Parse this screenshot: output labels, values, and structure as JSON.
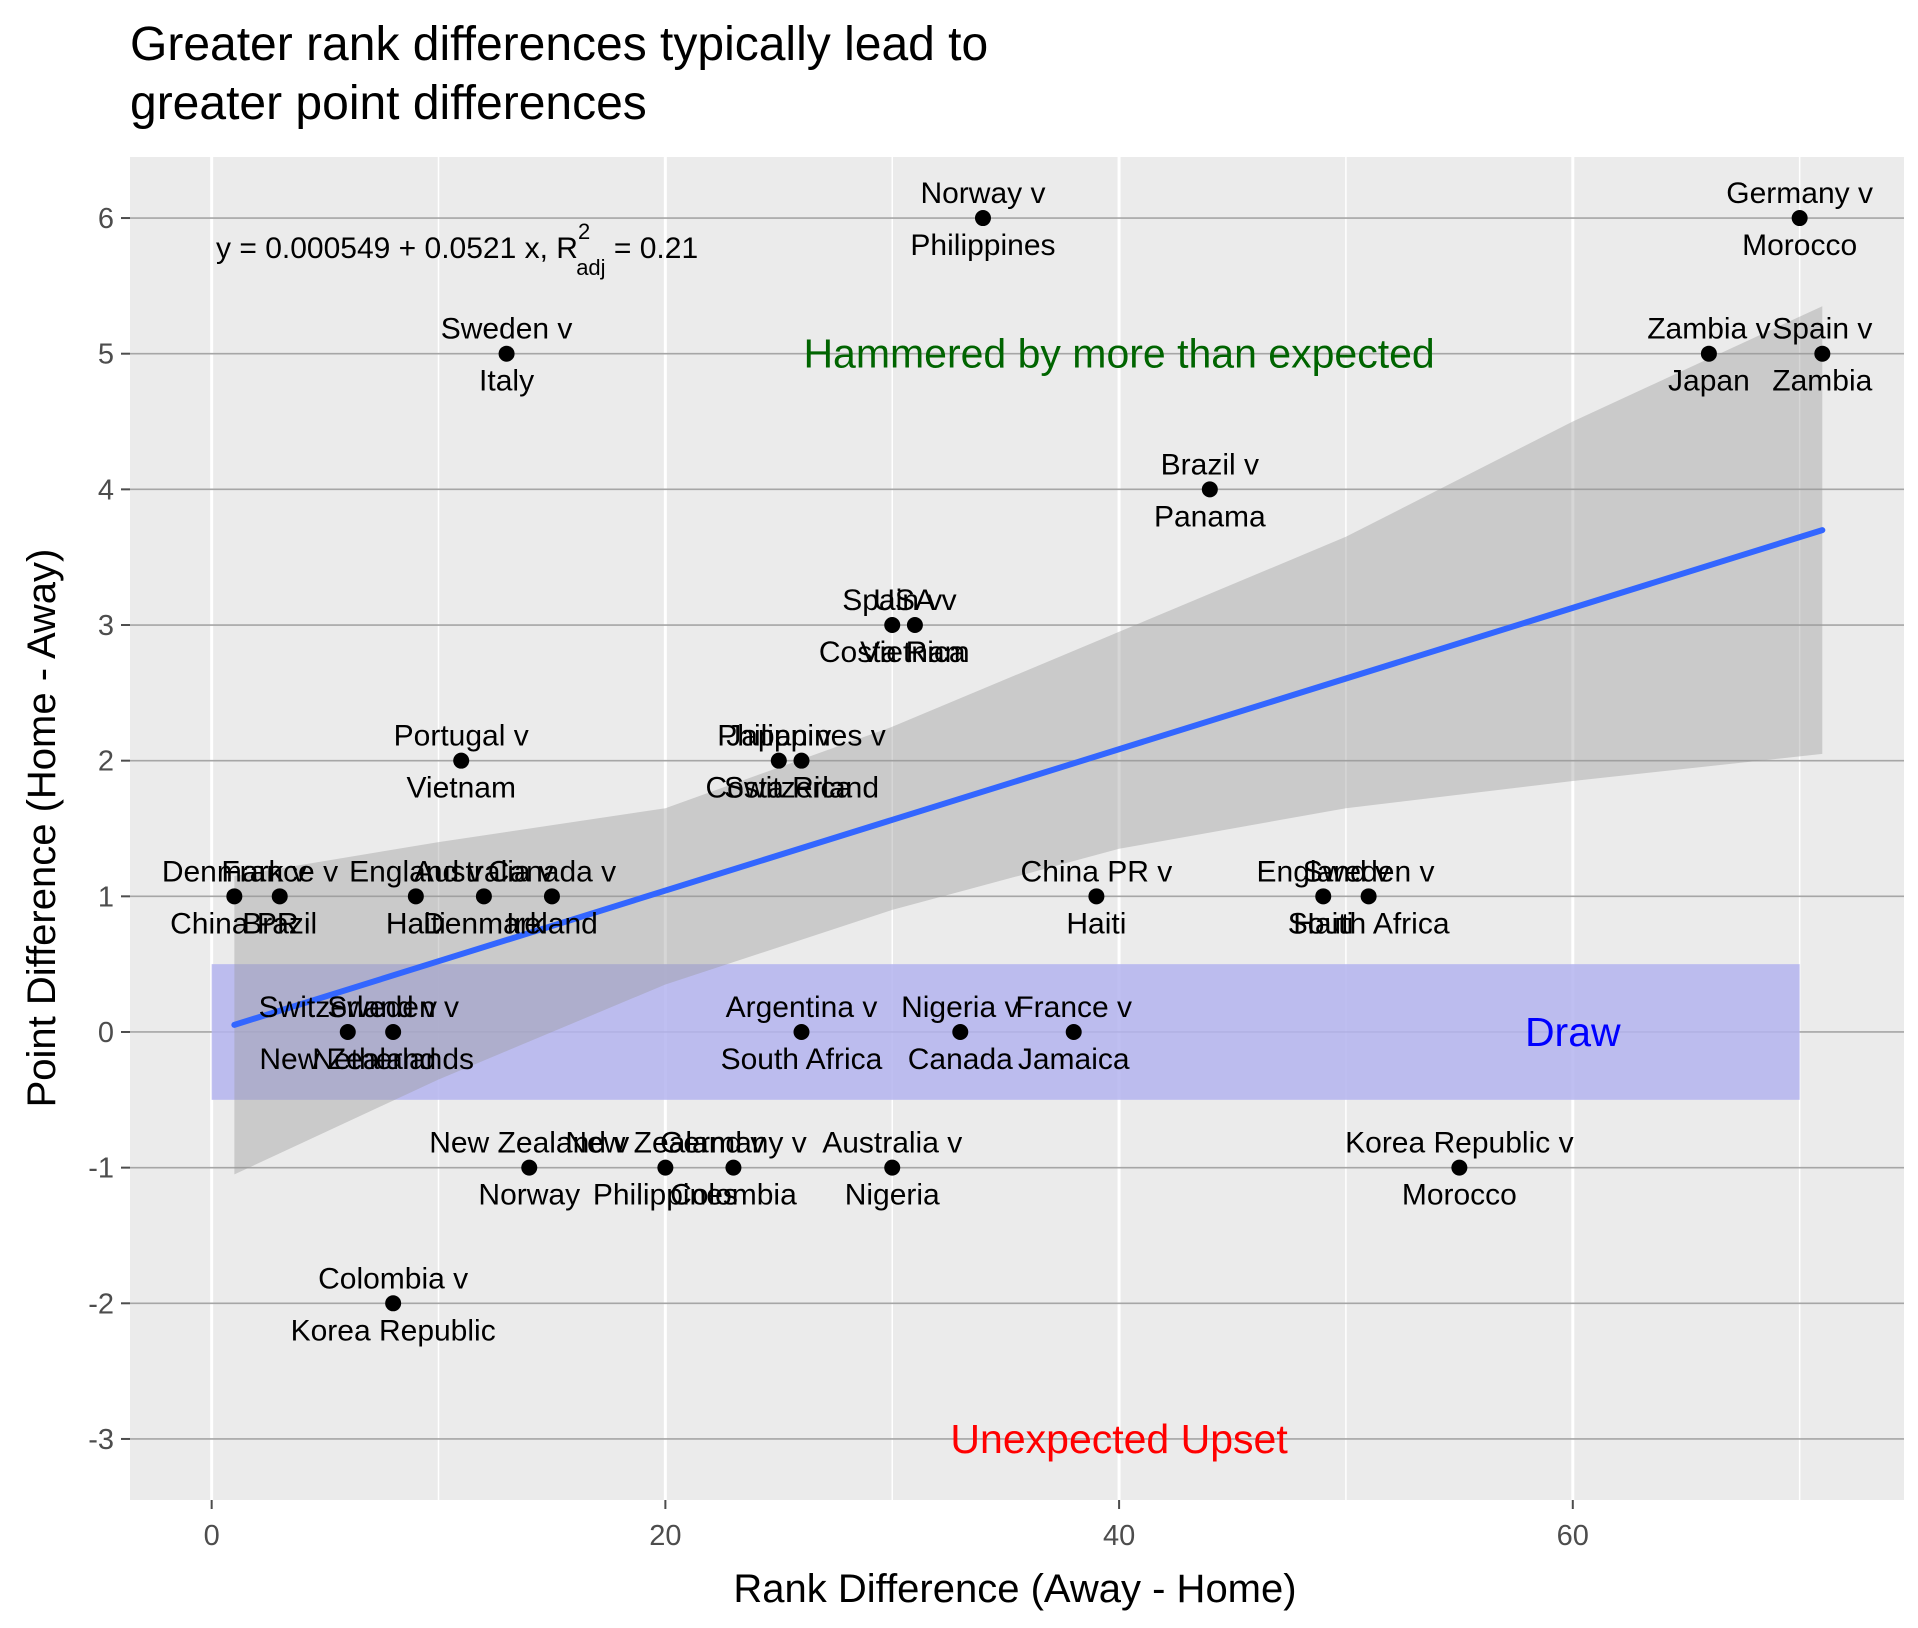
{
  "chart_data": {
    "type": "scatter",
    "title": [
      "Greater rank differences typically lead to",
      "greater point differences"
    ],
    "xlabel": "Rank Difference (Away - Home)",
    "ylabel": "Point Difference (Home - Away)",
    "xlim": [
      -3.6,
      74.6
    ],
    "ylim": [
      -3.45,
      6.45
    ],
    "x_ticks": [
      0,
      20,
      40,
      60
    ],
    "y_ticks": [
      -3,
      -2,
      -1,
      0,
      1,
      2,
      3,
      4,
      5,
      6
    ],
    "grid": true,
    "colors": {
      "panel": "#ebebeb",
      "grid_major": "#a6a6a6",
      "grid_minor": "#ffffff",
      "point": "#000000",
      "fit_line": "#3366ff",
      "ribbon": "#c8c8c8",
      "draw_band": "#b4b4ee",
      "hammered": "#006400",
      "upset": "#ff0000",
      "draw": "#0000ff"
    },
    "points": [
      {
        "x": 1,
        "y": 1,
        "home": "Denmark v",
        "away": "China PR"
      },
      {
        "x": 3,
        "y": 1,
        "home": "France v",
        "away": "Brazil"
      },
      {
        "x": 9,
        "y": 1,
        "home": "England v",
        "away": "Haiti"
      },
      {
        "x": 12,
        "y": 1,
        "home": "Australia v",
        "away": "Denmark"
      },
      {
        "x": 15,
        "y": 1,
        "home": "Canada v",
        "away": "Ireland"
      },
      {
        "x": 6,
        "y": 0,
        "home": "Switzerland v",
        "away": "New Zealand"
      },
      {
        "x": 8,
        "y": 0,
        "home": "Sweden v",
        "away": "Netherlands"
      },
      {
        "x": 11,
        "y": 2,
        "home": "Portugal v",
        "away": "Vietnam"
      },
      {
        "x": 13,
        "y": 5,
        "home": "Sweden v",
        "away": "Italy"
      },
      {
        "x": 8,
        "y": -2,
        "home": "Colombia v",
        "away": "Korea Republic"
      },
      {
        "x": 14,
        "y": -1,
        "home": "New Zealand v",
        "away": "Norway"
      },
      {
        "x": 20,
        "y": -1,
        "home": "New Zealand v",
        "away": "Philippines"
      },
      {
        "x": 23,
        "y": -1,
        "home": "Germany v",
        "away": "Colombia"
      },
      {
        "x": 30,
        "y": -1,
        "home": "Australia v",
        "away": "Nigeria"
      },
      {
        "x": 26,
        "y": 0,
        "home": "Argentina v",
        "away": "South Africa"
      },
      {
        "x": 33,
        "y": 0,
        "home": "Nigeria v",
        "away": "Canada"
      },
      {
        "x": 38,
        "y": 0,
        "home": "France v",
        "away": "Jamaica"
      },
      {
        "x": 25,
        "y": 2,
        "home": "Japan v",
        "away": "Costa Rica"
      },
      {
        "x": 26,
        "y": 2,
        "home": "Philippines v",
        "away": "Switzerland"
      },
      {
        "x": 30,
        "y": 3,
        "home": "Spain v",
        "away": "Costa Rica"
      },
      {
        "x": 31,
        "y": 3,
        "home": "USA v",
        "away": "Vietnam"
      },
      {
        "x": 34,
        "y": 6,
        "home": "Norway v",
        "away": "Philippines"
      },
      {
        "x": 39,
        "y": 1,
        "home": "China PR v",
        "away": "Haiti"
      },
      {
        "x": 44,
        "y": 4,
        "home": "Brazil v",
        "away": "Panama"
      },
      {
        "x": 49,
        "y": 1,
        "home": "England v",
        "away": "Haiti"
      },
      {
        "x": 51,
        "y": 1,
        "home": "Sweden v",
        "away": "South Africa"
      },
      {
        "x": 55,
        "y": -1,
        "home": "Korea Republic v",
        "away": "Morocco"
      },
      {
        "x": 66,
        "y": 5,
        "home": "Zambia v",
        "away": "Japan"
      },
      {
        "x": 70,
        "y": 6,
        "home": "Germany v",
        "away": "Morocco"
      },
      {
        "x": 71,
        "y": 5,
        "home": "Spain v",
        "away": "Zambia"
      }
    ],
    "fit": {
      "intercept": 0.000549,
      "slope": 0.0521,
      "x_range": [
        1,
        71
      ],
      "ribbon": [
        {
          "x": 1,
          "lo": -1.05,
          "hi": 1.15
        },
        {
          "x": 10,
          "lo": -0.35,
          "hi": 1.4
        },
        {
          "x": 20,
          "lo": 0.35,
          "hi": 1.65
        },
        {
          "x": 30,
          "lo": 0.9,
          "hi": 2.25
        },
        {
          "x": 40,
          "lo": 1.35,
          "hi": 2.95
        },
        {
          "x": 50,
          "lo": 1.65,
          "hi": 3.65
        },
        {
          "x": 60,
          "lo": 1.85,
          "hi": 4.5
        },
        {
          "x": 71,
          "lo": 2.05,
          "hi": 5.35
        }
      ]
    },
    "draw_band": {
      "xmin": 0,
      "xmax": 70,
      "ymin": -0.5,
      "ymax": 0.5
    },
    "annotations": {
      "equation": {
        "lead": "y = 0.000549 + 0.0521 x, R",
        "sup": "2",
        "sub": "adj",
        "tail": " = 0.21"
      },
      "hammered": {
        "text": "Hammered by more than expected",
        "x": 40,
        "y": 5
      },
      "upset": {
        "text": "Unexpected Upset",
        "x": 40,
        "y": -3
      },
      "draw": {
        "text": "Draw",
        "x": 60,
        "y": 0
      }
    }
  }
}
